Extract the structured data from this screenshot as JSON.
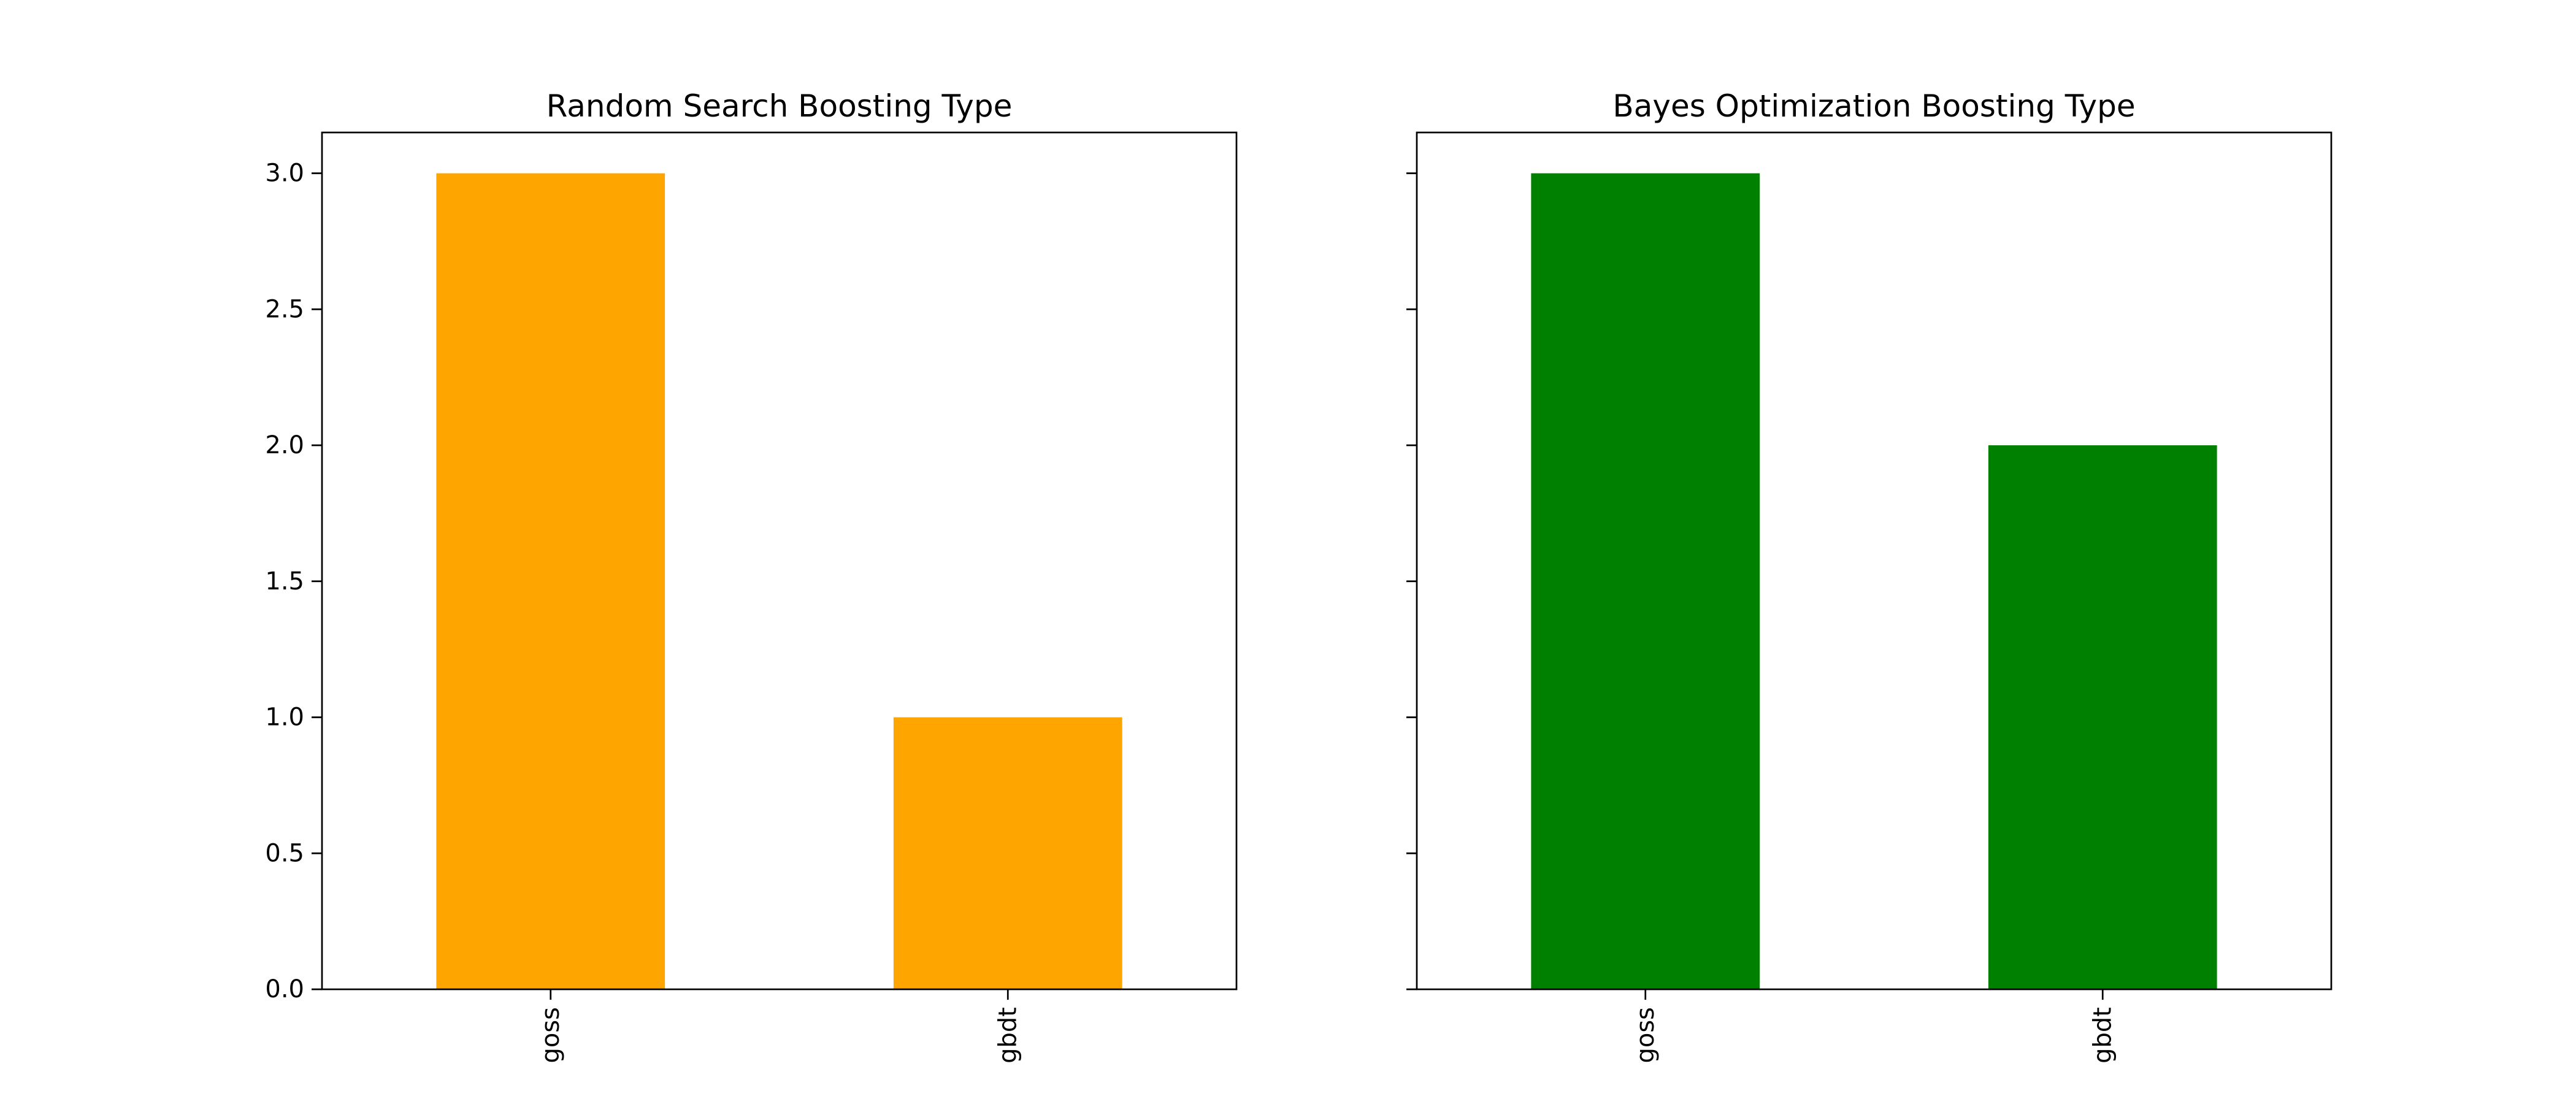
{
  "chart_data": [
    {
      "type": "bar",
      "title": "Random Search Boosting Type",
      "categories": [
        "goss",
        "gbdt"
      ],
      "values": [
        3,
        1
      ],
      "color": "#ffa500",
      "xlabel": "",
      "ylabel": "",
      "ylim": [
        0,
        3.15
      ],
      "yticks": [
        "0.0",
        "0.5",
        "1.0",
        "1.5",
        "2.0",
        "2.5",
        "3.0"
      ],
      "ytick_labels_visible": true,
      "xtick_rotation": 90,
      "grid": false,
      "legend": "none"
    },
    {
      "type": "bar",
      "title": "Bayes Optimization Boosting Type",
      "categories": [
        "goss",
        "gbdt"
      ],
      "values": [
        3,
        2
      ],
      "color": "#008000",
      "xlabel": "",
      "ylabel": "",
      "ylim": [
        0,
        3.15
      ],
      "yticks": [
        "0.0",
        "0.5",
        "1.0",
        "1.5",
        "2.0",
        "2.5",
        "3.0"
      ],
      "ytick_labels_visible": false,
      "xtick_rotation": 90,
      "grid": false,
      "legend": "none"
    }
  ]
}
